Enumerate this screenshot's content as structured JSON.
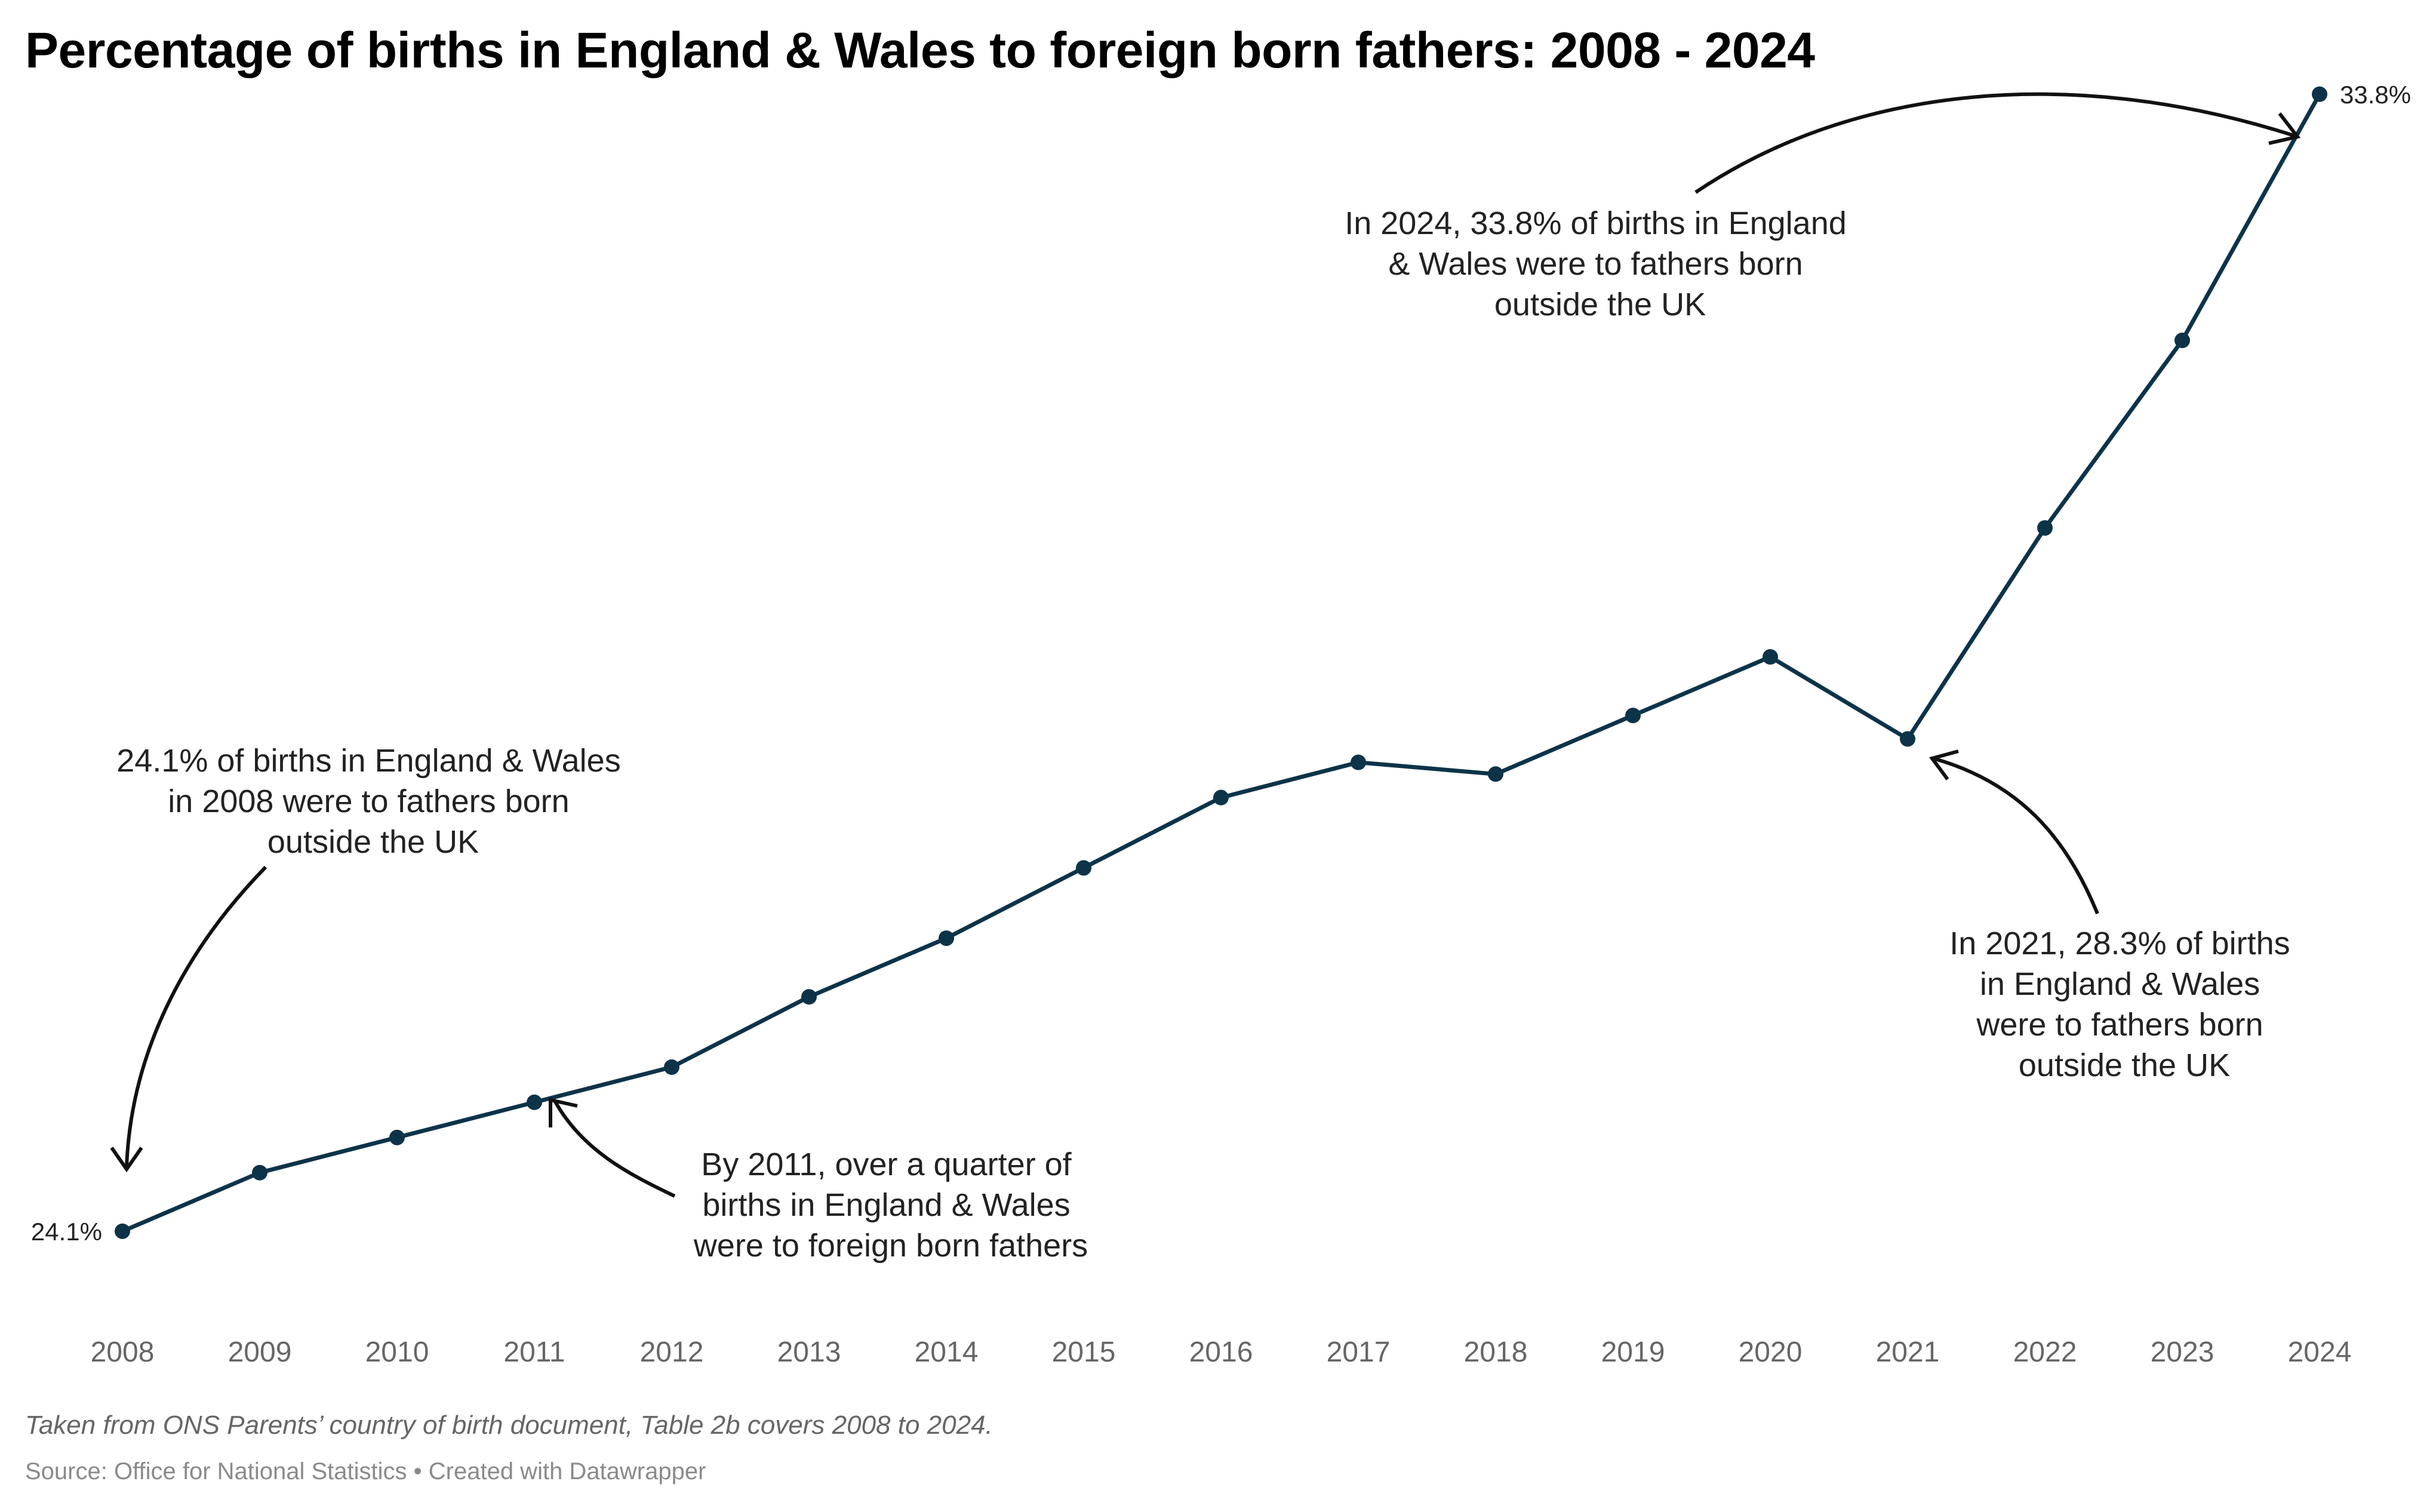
{
  "chart_data": {
    "type": "line",
    "title": "Percentage of births in England & Wales to foreign born fathers: 2008 - 2024",
    "x": [
      2008,
      2009,
      2010,
      2011,
      2012,
      2013,
      2014,
      2015,
      2016,
      2017,
      2018,
      2019,
      2020,
      2021,
      2022,
      2023,
      2024
    ],
    "series": [
      {
        "values": [
          24.1,
          24.6,
          24.9,
          25.2,
          25.5,
          26.1,
          26.6,
          27.2,
          27.8,
          28.1,
          28.0,
          28.5,
          29.0,
          28.3,
          30.1,
          31.7,
          33.8
        ],
        "color": "#0d3349"
      }
    ],
    "end_labels": {
      "first": "24.1%",
      "last": "33.8%"
    },
    "annotations": {
      "start": [
        "24.1% of births in England & Wales",
        "in 2008 were to fathers born",
        "outside the UK"
      ],
      "y2011": [
        "By 2011, over a quarter of",
        "births in England & Wales",
        "were to foreign born fathers"
      ],
      "y2021": [
        "In 2021, 28.3% of births",
        "in England & Wales",
        "were to fathers born",
        "outside the UK"
      ],
      "y2024": [
        "In 2024, 33.8% of births in England",
        "& Wales were to fathers born",
        "outside the UK"
      ]
    },
    "ylim": [
      23.6,
      34.4
    ],
    "grid": false,
    "legend": "none"
  },
  "footer": {
    "note": "Taken from ONS Parents’ country of birth document, Table 2b covers 2008 to 2024.",
    "source": "Source: Office for National Statistics • Created with Datawrapper"
  }
}
